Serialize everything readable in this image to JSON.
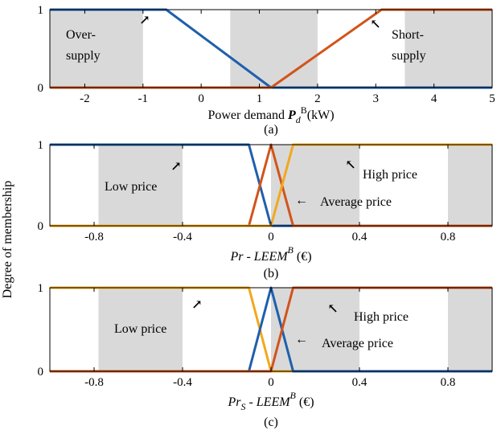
{
  "shared_ylabel": "Degree of membership",
  "colors": {
    "blue": "#1f5fad",
    "orange": "#d2541b",
    "yellow": "#f2a81d",
    "shade": "#d9d9d9"
  },
  "chart_data": [
    {
      "type": "line",
      "caption": "(a)",
      "xlabel_main": "Power demand ",
      "xlabel_var": "P",
      "xlabel_sub": "d",
      "xlabel_sup": "B",
      "xlabel_unit": "(kW)",
      "xlim": [
        -2.6,
        5
      ],
      "ylim": [
        0,
        1
      ],
      "xticks": [
        -2,
        -1,
        0,
        1,
        2,
        3,
        4,
        5
      ],
      "xtick_labels": [
        "-2",
        "-1",
        "0",
        "1",
        "2",
        "3",
        "4",
        "5"
      ],
      "yticks": [
        0,
        1
      ],
      "ytick_labels": [
        "0",
        "1"
      ],
      "shaded_bands": [
        [
          -2.6,
          -1.0
        ],
        [
          0.5,
          2.0
        ],
        [
          3.5,
          5.0
        ]
      ],
      "series": [
        {
          "color": "blue",
          "x": [
            -2.6,
            -0.6,
            1.2,
            5.0
          ],
          "y": [
            1,
            1,
            0,
            0
          ]
        },
        {
          "color": "orange",
          "x": [
            -2.6,
            1.2,
            3.1,
            5.0
          ],
          "y": [
            0,
            0,
            1,
            1
          ]
        }
      ],
      "annotations": [
        {
          "lines": [
            "Over-",
            "supply"
          ],
          "arrow": "↗"
        },
        {
          "lines": [
            "Short-",
            "supply"
          ],
          "arrow": "↖"
        }
      ]
    },
    {
      "type": "line",
      "caption": "(b)",
      "xlabel_main": "Pr",
      "xlabel_sub": "",
      "xlabel_rest": " - LEEM",
      "xlabel_sup": "B",
      "xlabel_unit": " (€)",
      "xlim": [
        -1,
        1
      ],
      "ylim": [
        0,
        1
      ],
      "xticks": [
        -0.8,
        -0.4,
        0,
        0.4,
        0.8
      ],
      "xtick_labels": [
        "-0.8",
        "-0.4",
        "0",
        "0.4",
        "0.8"
      ],
      "yticks": [
        0,
        1
      ],
      "ytick_labels": [
        "0",
        "1"
      ],
      "shaded_bands": [
        [
          -0.78,
          -0.4
        ],
        [
          0.0,
          0.4
        ],
        [
          0.8,
          1.0
        ]
      ],
      "series": [
        {
          "color": "blue",
          "x": [
            -1,
            -0.1,
            0.0,
            1.0
          ],
          "y": [
            1,
            1,
            0,
            0
          ]
        },
        {
          "color": "orange",
          "x": [
            -1,
            -0.1,
            0.0,
            0.1,
            1.0
          ],
          "y": [
            0,
            0,
            1,
            0,
            0
          ]
        },
        {
          "color": "yellow",
          "x": [
            -1,
            0.0,
            0.1,
            1.0
          ],
          "y": [
            0,
            0,
            1,
            1
          ]
        }
      ],
      "annotations": [
        {
          "text": "Low price",
          "arrow": "↗"
        },
        {
          "text": "High price",
          "arrow": "↖"
        },
        {
          "text": "Average price",
          "arrow": "←"
        }
      ]
    },
    {
      "type": "line",
      "caption": "(c)",
      "xlabel_main": "Pr",
      "xlabel_sub": "S",
      "xlabel_rest": " - LEEM",
      "xlabel_sup": "B",
      "xlabel_unit": " (€)",
      "xlim": [
        -1,
        1
      ],
      "ylim": [
        0,
        1
      ],
      "xticks": [
        -0.8,
        -0.4,
        0,
        0.4,
        0.8
      ],
      "xtick_labels": [
        "-0.8",
        "-0.4",
        "0",
        "0.4",
        "0.8"
      ],
      "yticks": [
        0,
        1
      ],
      "ytick_labels": [
        "0",
        "1"
      ],
      "shaded_bands": [
        [
          -0.78,
          -0.4
        ],
        [
          0.0,
          0.4
        ],
        [
          0.8,
          1.0
        ]
      ],
      "series": [
        {
          "color": "yellow",
          "x": [
            -1,
            -0.1,
            0.0,
            1.0
          ],
          "y": [
            1,
            1,
            0,
            0
          ]
        },
        {
          "color": "blue",
          "x": [
            -1,
            -0.1,
            0.0,
            0.1,
            1.0
          ],
          "y": [
            0,
            0,
            1,
            0,
            0
          ]
        },
        {
          "color": "orange",
          "x": [
            -1,
            0.0,
            0.1,
            1.0
          ],
          "y": [
            0,
            0,
            1,
            1
          ]
        }
      ],
      "annotations": [
        {
          "text": "Low price",
          "arrow": "↗"
        },
        {
          "text": "High price",
          "arrow": "↖"
        },
        {
          "text": "Average price",
          "arrow": "←"
        }
      ]
    }
  ]
}
